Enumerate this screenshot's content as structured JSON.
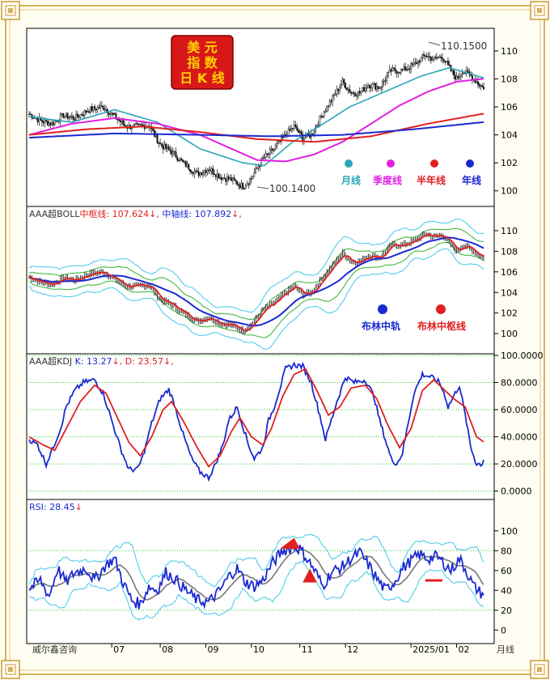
{
  "colors": {
    "frame_gold": "#d8b25a",
    "grid_green": "#33cc33",
    "candle": "#111111",
    "ma_month": "#2aa6b8",
    "ma_quarter": "#e020e0",
    "ma_half": "#e02020",
    "ma_year": "#1a2ad0",
    "boll_band": "#40c8e8",
    "boll_inner": "#30b030",
    "kdj_k": "#1a2ad0",
    "kdj_d": "#e02020",
    "rsi_line": "#1a2ad0"
  },
  "logo": {
    "lines": [
      "美  元",
      "指  数",
      "日 K 线"
    ]
  },
  "footer": {
    "brand": "威尔鑫咨询",
    "unit": "月线"
  },
  "chart_data": [
    {
      "type": "line",
      "panel": "price",
      "title": "",
      "ylim": [
        99,
        111.5
      ],
      "yticks": [
        100,
        102,
        104,
        106,
        108,
        110
      ],
      "x_labels": [
        "07",
        "08",
        "09",
        "10",
        "11",
        "12",
        "2025/01",
        "02"
      ],
      "annotations": {
        "high": "110.1500",
        "low": "100.1400"
      },
      "close_anchors": [
        [
          0,
          105.5
        ],
        [
          8,
          105.0
        ],
        [
          16,
          104.8
        ],
        [
          24,
          105.4
        ],
        [
          32,
          105.2
        ],
        [
          42,
          105.8
        ],
        [
          52,
          106.0
        ],
        [
          60,
          105.3
        ],
        [
          68,
          104.6
        ],
        [
          76,
          104.6
        ],
        [
          84,
          104.7
        ],
        [
          92,
          103.3
        ],
        [
          100,
          102.8
        ],
        [
          108,
          102.0
        ],
        [
          118,
          101.2
        ],
        [
          126,
          101.6
        ],
        [
          134,
          101.0
        ],
        [
          142,
          100.8
        ],
        [
          150,
          100.3
        ],
        [
          156,
          100.9
        ],
        [
          164,
          102.3
        ],
        [
          172,
          103.0
        ],
        [
          180,
          104.0
        ],
        [
          186,
          104.6
        ],
        [
          192,
          103.8
        ],
        [
          198,
          104.0
        ],
        [
          206,
          105.5
        ],
        [
          214,
          106.8
        ],
        [
          220,
          107.8
        ],
        [
          226,
          107.0
        ],
        [
          232,
          107.0
        ],
        [
          238,
          107.6
        ],
        [
          246,
          107.4
        ],
        [
          254,
          108.6
        ],
        [
          262,
          108.6
        ],
        [
          270,
          109.0
        ],
        [
          278,
          109.7
        ],
        [
          284,
          109.4
        ],
        [
          290,
          109.6
        ],
        [
          294,
          108.9
        ],
        [
          300,
          108.0
        ],
        [
          304,
          108.6
        ],
        [
          310,
          108.2
        ],
        [
          316,
          107.6
        ],
        [
          318,
          107.4
        ]
      ],
      "series": [
        {
          "name": "月线",
          "anchors": [
            [
              0,
              105.3
            ],
            [
              30,
              104.9
            ],
            [
              60,
              105.8
            ],
            [
              90,
              104.9
            ],
            [
              120,
              103.0
            ],
            [
              150,
              102.0
            ],
            [
              165,
              101.8
            ],
            [
              185,
              103.5
            ],
            [
              205,
              104.7
            ],
            [
              225,
              106.0
            ],
            [
              250,
              107.1
            ],
            [
              275,
              108.2
            ],
            [
              295,
              108.8
            ],
            [
              318,
              108.1
            ]
          ]
        },
        {
          "name": "季度线",
          "anchors": [
            [
              0,
              104.0
            ],
            [
              30,
              104.8
            ],
            [
              60,
              105.2
            ],
            [
              90,
              104.8
            ],
            [
              120,
              104.0
            ],
            [
              140,
              103.1
            ],
            [
              160,
              102.2
            ],
            [
              180,
              102.1
            ],
            [
              200,
              102.6
            ],
            [
              220,
              103.5
            ],
            [
              240,
              104.8
            ],
            [
              260,
              106.1
            ],
            [
              280,
              107.1
            ],
            [
              300,
              107.8
            ],
            [
              318,
              108.0
            ]
          ]
        },
        {
          "name": "半年线",
          "anchors": [
            [
              0,
              104.0
            ],
            [
              40,
              104.4
            ],
            [
              80,
              104.6
            ],
            [
              120,
              104.2
            ],
            [
              160,
              103.7
            ],
            [
              200,
              103.5
            ],
            [
              240,
              103.9
            ],
            [
              280,
              104.8
            ],
            [
              318,
              105.5
            ]
          ]
        },
        {
          "name": "年线",
          "anchors": [
            [
              0,
              103.8
            ],
            [
              60,
              104.1
            ],
            [
              120,
              104.0
            ],
            [
              170,
              103.9
            ],
            [
              220,
              104.0
            ],
            [
              270,
              104.4
            ],
            [
              318,
              104.9
            ]
          ]
        }
      ]
    },
    {
      "type": "line",
      "panel": "boll",
      "title": "AAA超BOLL",
      "ylim": [
        98.2,
        112.2
      ],
      "yticks": [
        100,
        102,
        104,
        106,
        108,
        110
      ],
      "values": {
        "中枢线": "107.624",
        "中轴线": "107.892"
      },
      "series": [
        {
          "name": "布林中轨",
          "color": "#1a2ad0"
        },
        {
          "name": "布林中枢线",
          "color": "#e02020"
        }
      ]
    },
    {
      "type": "line",
      "panel": "kdj",
      "title": "AAA超KDJ",
      "ylim": [
        -5,
        100
      ],
      "yticks": [
        "0.0000",
        "20.0000",
        "40.0000",
        "60.0000",
        "80.0000",
        "100.0000"
      ],
      "values": {
        "K": "13.27",
        "D": "23.57"
      },
      "series": [
        {
          "name": "K",
          "anchors": [
            [
              0,
              38
            ],
            [
              6,
              34
            ],
            [
              12,
              20
            ],
            [
              16,
              30
            ],
            [
              22,
              46
            ],
            [
              26,
              62
            ],
            [
              32,
              74
            ],
            [
              38,
              80
            ],
            [
              46,
              82
            ],
            [
              52,
              72
            ],
            [
              58,
              52
            ],
            [
              64,
              32
            ],
            [
              70,
              16
            ],
            [
              76,
              16
            ],
            [
              80,
              26
            ],
            [
              86,
              50
            ],
            [
              92,
              68
            ],
            [
              98,
              75
            ],
            [
              102,
              64
            ],
            [
              108,
              42
            ],
            [
              114,
              24
            ],
            [
              120,
              14
            ],
            [
              126,
              10
            ],
            [
              130,
              18
            ],
            [
              136,
              34
            ],
            [
              140,
              52
            ],
            [
              146,
              62
            ],
            [
              150,
              48
            ],
            [
              154,
              34
            ],
            [
              158,
              24
            ],
            [
              164,
              32
            ],
            [
              168,
              52
            ],
            [
              172,
              62
            ],
            [
              176,
              76
            ],
            [
              180,
              90
            ],
            [
              186,
              93
            ],
            [
              192,
              92
            ],
            [
              198,
              80
            ],
            [
              204,
              56
            ],
            [
              208,
              38
            ],
            [
              212,
              52
            ],
            [
              216,
              66
            ],
            [
              222,
              84
            ],
            [
              228,
              80
            ],
            [
              236,
              82
            ],
            [
              242,
              70
            ],
            [
              246,
              52
            ],
            [
              250,
              38
            ],
            [
              254,
              24
            ],
            [
              258,
              20
            ],
            [
              262,
              28
            ],
            [
              266,
              50
            ],
            [
              270,
              72
            ],
            [
              276,
              86
            ],
            [
              282,
              84
            ],
            [
              288,
              80
            ],
            [
              292,
              70
            ],
            [
              294,
              62
            ],
            [
              298,
              70
            ],
            [
              302,
              78
            ],
            [
              306,
              56
            ],
            [
              310,
              32
            ],
            [
              314,
              20
            ],
            [
              318,
              20
            ],
            [
              322,
              36
            ],
            [
              326,
              52
            ],
            [
              330,
              40
            ],
            [
              334,
              30
            ],
            [
              338,
              18
            ],
            [
              340,
              13
            ]
          ]
        },
        {
          "name": "D",
          "anchors": [
            [
              0,
              40
            ],
            [
              10,
              34
            ],
            [
              18,
              30
            ],
            [
              26,
              46
            ],
            [
              36,
              66
            ],
            [
              46,
              78
            ],
            [
              54,
              72
            ],
            [
              62,
              54
            ],
            [
              70,
              36
            ],
            [
              78,
              26
            ],
            [
              86,
              40
            ],
            [
              94,
              60
            ],
            [
              100,
              66
            ],
            [
              108,
              52
            ],
            [
              118,
              32
            ],
            [
              126,
              18
            ],
            [
              134,
              26
            ],
            [
              142,
              44
            ],
            [
              148,
              54
            ],
            [
              156,
              40
            ],
            [
              164,
              34
            ],
            [
              170,
              46
            ],
            [
              178,
              70
            ],
            [
              186,
              86
            ],
            [
              194,
              90
            ],
            [
              202,
              74
            ],
            [
              210,
              56
            ],
            [
              218,
              62
            ],
            [
              226,
              76
            ],
            [
              236,
              78
            ],
            [
              244,
              68
            ],
            [
              252,
              48
            ],
            [
              260,
              32
            ],
            [
              268,
              46
            ],
            [
              276,
              74
            ],
            [
              284,
              82
            ],
            [
              292,
              74
            ],
            [
              298,
              68
            ],
            [
              306,
              62
            ],
            [
              314,
              40
            ],
            [
              322,
              34
            ],
            [
              330,
              42
            ],
            [
              336,
              34
            ],
            [
              340,
              24
            ]
          ]
        }
      ]
    },
    {
      "type": "line",
      "panel": "rsi",
      "title": "RSI",
      "ylim": [
        -12,
        130
      ],
      "yticks": [
        0,
        20,
        40,
        60,
        80,
        100
      ],
      "values": {
        "RSI": "28.45"
      },
      "series": [
        {
          "name": "RSI",
          "anchors": [
            [
              0,
              42
            ],
            [
              8,
              50
            ],
            [
              14,
              34
            ],
            [
              20,
              62
            ],
            [
              26,
              48
            ],
            [
              32,
              58
            ],
            [
              40,
              62
            ],
            [
              46,
              50
            ],
            [
              54,
              66
            ],
            [
              60,
              72
            ],
            [
              66,
              48
            ],
            [
              72,
              30
            ],
            [
              78,
              26
            ],
            [
              84,
              44
            ],
            [
              90,
              40
            ],
            [
              96,
              58
            ],
            [
              102,
              52
            ],
            [
              110,
              40
            ],
            [
              118,
              30
            ],
            [
              126,
              28
            ],
            [
              134,
              40
            ],
            [
              140,
              54
            ],
            [
              146,
              62
            ],
            [
              152,
              48
            ],
            [
              158,
              44
            ],
            [
              164,
              50
            ],
            [
              170,
              66
            ],
            [
              178,
              80
            ],
            [
              186,
              84
            ],
            [
              190,
              82
            ],
            [
              196,
              70
            ],
            [
              202,
              56
            ],
            [
              206,
              44
            ],
            [
              212,
              58
            ],
            [
              220,
              64
            ],
            [
              226,
              72
            ],
            [
              232,
              78
            ],
            [
              238,
              66
            ],
            [
              244,
              52
            ],
            [
              250,
              40
            ],
            [
              256,
              48
            ],
            [
              262,
              62
            ],
            [
              268,
              70
            ],
            [
              274,
              76
            ],
            [
              280,
              72
            ],
            [
              286,
              74
            ],
            [
              292,
              66
            ],
            [
              296,
              60
            ],
            [
              302,
              72
            ],
            [
              306,
              62
            ],
            [
              312,
              44
            ],
            [
              318,
              36
            ],
            [
              324,
              46
            ],
            [
              330,
              58
            ],
            [
              336,
              40
            ],
            [
              340,
              30
            ]
          ]
        }
      ]
    }
  ]
}
